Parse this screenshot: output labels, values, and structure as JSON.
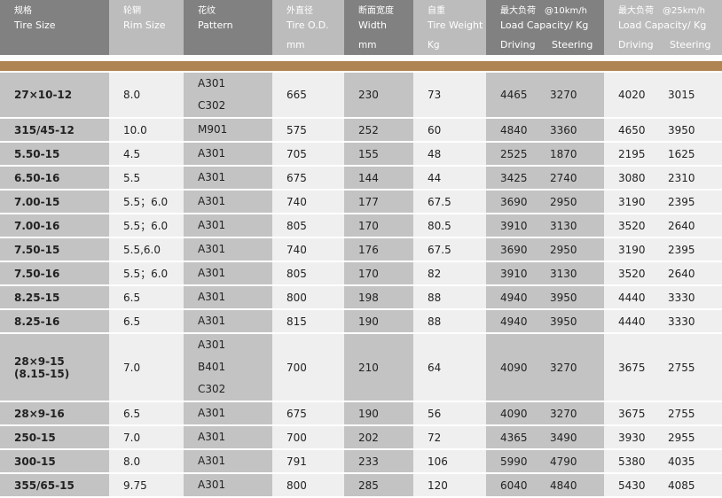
{
  "header": {
    "columns": [
      {
        "zh": "规格",
        "en": "Tire Size",
        "unit": ""
      },
      {
        "zh": "轮辋",
        "en": "Rim Size",
        "unit": ""
      },
      {
        "zh": "花纹",
        "en": "Pattern",
        "unit": ""
      },
      {
        "zh": "外直径",
        "en": "Tire O.D.",
        "unit": "mm"
      },
      {
        "zh": "断面宽度",
        "en": "Width",
        "unit": "mm"
      },
      {
        "zh": "自重",
        "en": "Tire Weight",
        "unit": "Kg"
      },
      {
        "zh": "最大负荷　@10km/h",
        "en": "Load Capacity/  Kg",
        "sub": [
          "Driving",
          "Steering"
        ]
      },
      {
        "zh": "最大负荷　@25km/h",
        "en": "Load Capacity/ Kg",
        "sub": [
          "Driving",
          "Steering"
        ]
      }
    ]
  },
  "colors": {
    "accent_bar": "#ad8452",
    "header_dark": "#818181",
    "header_light": "#bcbcbc",
    "cell_dark": "#c3c3c3",
    "cell_light": "#efefef"
  },
  "rows": [
    {
      "size": [
        "27×10-12"
      ],
      "rim": "8.0",
      "pattern": [
        "A301",
        "C302"
      ],
      "od": "665",
      "width": "230",
      "weight": "73",
      "d10": "4465",
      "s10": "3270",
      "d25": "4020",
      "s25": "3015"
    },
    {
      "size": [
        "315/45-12"
      ],
      "rim": "10.0",
      "pattern": [
        "M901"
      ],
      "od": "575",
      "width": "252",
      "weight": "60",
      "d10": "4840",
      "s10": "3360",
      "d25": "4650",
      "s25": "3950"
    },
    {
      "size": [
        "5.50-15"
      ],
      "rim": "4.5",
      "pattern": [
        "A301"
      ],
      "od": "705",
      "width": "155",
      "weight": "48",
      "d10": "2525",
      "s10": "1870",
      "d25": "2195",
      "s25": "1625"
    },
    {
      "size": [
        "6.50-16"
      ],
      "rim": "5.5",
      "pattern": [
        "A301"
      ],
      "od": "675",
      "width": "144",
      "weight": "44",
      "d10": "3425",
      "s10": "2740",
      "d25": "3080",
      "s25": "2310"
    },
    {
      "size": [
        "7.00-15"
      ],
      "rim": "5.5；6.0",
      "pattern": [
        "A301"
      ],
      "od": "740",
      "width": "177",
      "weight": "67.5",
      "d10": "3690",
      "s10": "2950",
      "d25": "3190",
      "s25": "2395"
    },
    {
      "size": [
        "7.00-16"
      ],
      "rim": "5.5；6.0",
      "pattern": [
        "A301"
      ],
      "od": "805",
      "width": "170",
      "weight": "80.5",
      "d10": "3910",
      "s10": "3130",
      "d25": "3520",
      "s25": "2640"
    },
    {
      "size": [
        "7.50-15"
      ],
      "rim": "5.5,6.0",
      "pattern": [
        "A301"
      ],
      "od": "740",
      "width": "176",
      "weight": "67.5",
      "d10": "3690",
      "s10": "2950",
      "d25": "3190",
      "s25": "2395"
    },
    {
      "size": [
        "7.50-16"
      ],
      "rim": "5.5；6.0",
      "pattern": [
        "A301"
      ],
      "od": "805",
      "width": "170",
      "weight": "82",
      "d10": "3910",
      "s10": "3130",
      "d25": "3520",
      "s25": "2640"
    },
    {
      "size": [
        "8.25-15"
      ],
      "rim": "6.5",
      "pattern": [
        "A301"
      ],
      "od": "800",
      "width": "198",
      "weight": "88",
      "d10": "4940",
      "s10": "3950",
      "d25": "4440",
      "s25": "3330"
    },
    {
      "size": [
        "8.25-16"
      ],
      "rim": "6.5",
      "pattern": [
        "A301"
      ],
      "od": "815",
      "width": "190",
      "weight": "88",
      "d10": "4940",
      "s10": "3950",
      "d25": "4440",
      "s25": "3330"
    },
    {
      "size": [
        "28×9-15",
        "(8.15-15)"
      ],
      "rim": "7.0",
      "pattern": [
        "A301",
        "B401",
        "C302"
      ],
      "od": "700",
      "width": "210",
      "weight": "64",
      "d10": "4090",
      "s10": "3270",
      "d25": "3675",
      "s25": "2755"
    },
    {
      "size": [
        "28×9-16"
      ],
      "rim": "6.5",
      "pattern": [
        "A301"
      ],
      "od": "675",
      "width": "190",
      "weight": "56",
      "d10": "4090",
      "s10": "3270",
      "d25": "3675",
      "s25": "2755"
    },
    {
      "size": [
        "250-15"
      ],
      "rim": "7.0",
      "pattern": [
        "A301"
      ],
      "od": "700",
      "width": "202",
      "weight": "72",
      "d10": "4365",
      "s10": "3490",
      "d25": "3930",
      "s25": "2955"
    },
    {
      "size": [
        "300-15"
      ],
      "rim": "8.0",
      "pattern": [
        "A301"
      ],
      "od": "791",
      "width": "233",
      "weight": "106",
      "d10": "5990",
      "s10": "4790",
      "d25": "5380",
      "s25": "4035"
    },
    {
      "size": [
        "355/65-15"
      ],
      "rim": "9.75",
      "pattern": [
        "A301"
      ],
      "od": "800",
      "width": "285",
      "weight": "120",
      "d10": "6040",
      "s10": "4840",
      "d25": "5430",
      "s25": "4085"
    }
  ]
}
